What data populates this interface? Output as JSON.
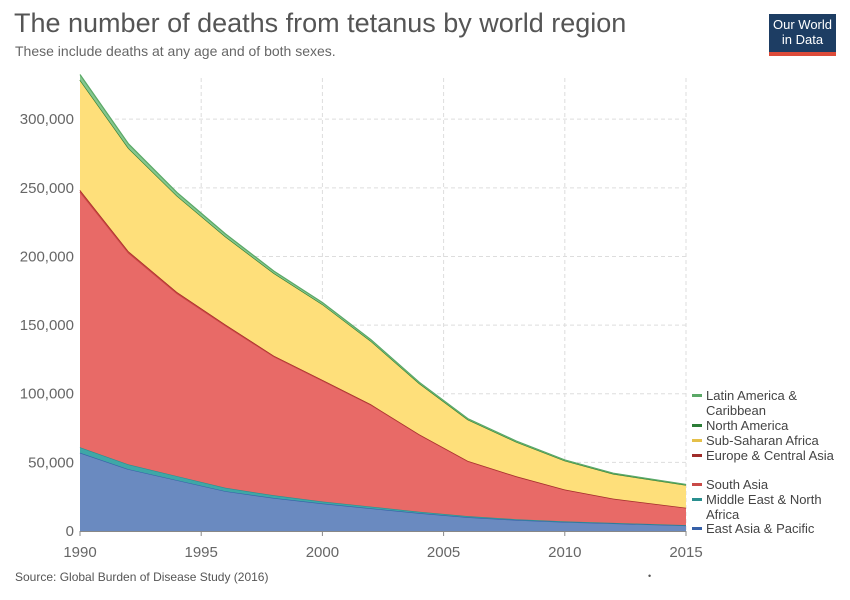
{
  "header": {
    "title": "The number of deaths from tetanus by world region",
    "subtitle": "These include deaths at any age and of both sexes."
  },
  "logo": {
    "line1": "Our World",
    "line2": "in Data"
  },
  "footer": {
    "source": "Source: Global Burden of Disease Study (2016)",
    "dot": "•"
  },
  "chart_data": {
    "type": "area",
    "stacked": true,
    "title": "The number of deaths from tetanus by world region",
    "subtitle": "These include deaths at any age and of both sexes.",
    "xlabel": "",
    "ylabel": "",
    "x": [
      1990,
      1992,
      1994,
      1996,
      1998,
      2000,
      2002,
      2004,
      2006,
      2008,
      2010,
      2012,
      2015
    ],
    "xlim": [
      1990,
      2015
    ],
    "ylim": [
      0,
      330000
    ],
    "yticks": [
      0,
      50000,
      100000,
      150000,
      200000,
      250000,
      300000
    ],
    "ytick_labels": [
      "0",
      "50,000",
      "100,000",
      "150,000",
      "200,000",
      "250,000",
      "300,000"
    ],
    "xticks": [
      1990,
      1995,
      2000,
      2005,
      2010,
      2015
    ],
    "xtick_labels": [
      "1990",
      "1995",
      "2000",
      "2005",
      "2010",
      "2015"
    ],
    "legend_position": "right",
    "series": [
      {
        "name": "East Asia & Pacific",
        "color": "#6a8ac0",
        "line_color": "#3660a8",
        "values": [
          57000,
          45000,
          37000,
          29000,
          24000,
          20000,
          16500,
          13000,
          10000,
          8000,
          6500,
          5500,
          4000
        ]
      },
      {
        "name": "Middle East & North Africa",
        "color": "#3fa7a7",
        "line_color": "#2a8f8f",
        "values": [
          4000,
          3500,
          3000,
          2500,
          2000,
          1500,
          1300,
          1000,
          800,
          600,
          500,
          400,
          300
        ]
      },
      {
        "name": "South Asia",
        "color": "#e86a67",
        "line_color": "#c94a47",
        "values": [
          186000,
          154000,
          133000,
          118000,
          101000,
          88000,
          74000,
          56000,
          40000,
          31000,
          23000,
          17500,
          12500
        ]
      },
      {
        "name": "Europe & Central Asia",
        "color": "#c9403d",
        "line_color": "#a02c2a",
        "values": [
          1500,
          1300,
          1100,
          900,
          700,
          600,
          500,
          400,
          300,
          250,
          200,
          180,
          150
        ]
      },
      {
        "name": "Sub-Saharan Africa",
        "color": "#fedf7a",
        "line_color": "#e5c04a",
        "values": [
          80000,
          75000,
          70000,
          64000,
          60000,
          55000,
          46000,
          37000,
          30000,
          25000,
          21000,
          18000,
          16500
        ]
      },
      {
        "name": "North America",
        "color": "#3c9a4a",
        "line_color": "#2b7d37",
        "values": [
          50,
          50,
          45,
          40,
          35,
          30,
          30,
          25,
          25,
          20,
          20,
          20,
          20
        ]
      },
      {
        "name": "Latin America & Caribbean",
        "color": "#85c78e",
        "line_color": "#5aa866",
        "values": [
          4000,
          3200,
          2500,
          2000,
          1600,
          1300,
          1100,
          900,
          750,
          650,
          550,
          480,
          400
        ]
      }
    ]
  }
}
